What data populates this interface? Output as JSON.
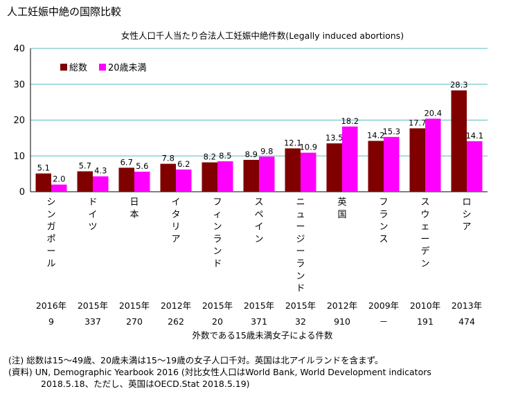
{
  "title": "人工妊娠中絶の国際比較",
  "chart_data": {
    "type": "bar",
    "subtitle": "女性人口千人当たり合法人工妊娠中絶件数(Legally induced abortions)",
    "categories": [
      "シンガポール",
      "ドイツ",
      "日本",
      "イタリア",
      "フィンランド",
      "スペイン",
      "ニュージーランド",
      "英国",
      "フランス",
      "スウェーデン",
      "ロシア"
    ],
    "years": [
      "2016年",
      "2015年",
      "2015年",
      "2012年",
      "2015年",
      "2015年",
      "2015年",
      "2012年",
      "2009年",
      "2010年",
      "2013年"
    ],
    "under15_counts": [
      "9",
      "337",
      "270",
      "262",
      "20",
      "371",
      "32",
      "910",
      "－",
      "191",
      "474"
    ],
    "under15_caption": "外数である15歳未満女子による件数",
    "series": [
      {
        "name": "総数",
        "color": "#800000",
        "values": [
          5.1,
          5.7,
          6.7,
          7.8,
          8.2,
          8.9,
          12.1,
          13.5,
          14.2,
          17.7,
          28.3
        ]
      },
      {
        "name": "20歳未満",
        "color": "#ff00ff",
        "values": [
          2.0,
          4.3,
          5.6,
          6.2,
          8.5,
          9.8,
          10.9,
          18.2,
          15.3,
          20.4,
          14.1
        ]
      }
    ],
    "ylim": [
      0,
      40
    ],
    "yticks": [
      0,
      10,
      20,
      30,
      40
    ],
    "grid": true,
    "legend": "top-left",
    "gridline_color": "#55bbbb"
  },
  "notes": {
    "line1": "(注) 総数は15～49歳、20歳未満は15～19歳の女子人口千対。英国は北アイルランドを含まず。",
    "line2": "(資料) UN, Demographic Yearbook 2016 (対比女性人口はWorld Bank, World Development indicators",
    "line3": "2018.5.18、ただし、英国はOECD.Stat 2018.5.19)"
  }
}
